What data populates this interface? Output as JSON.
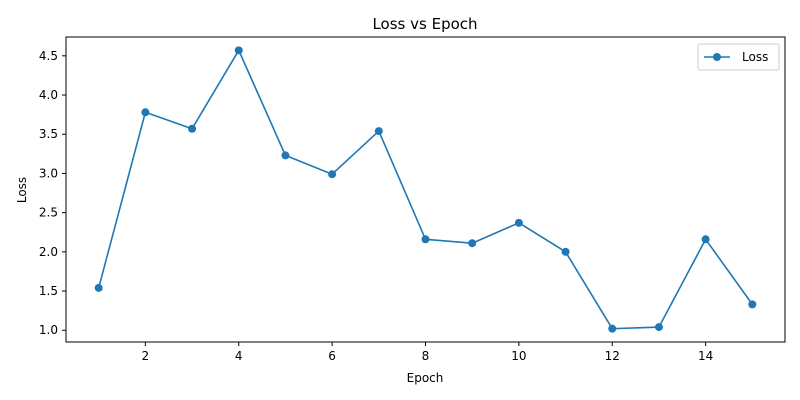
{
  "chart_data": {
    "type": "line",
    "title": "Loss vs Epoch",
    "xlabel": "Epoch",
    "ylabel": "Loss",
    "x": [
      1,
      2,
      3,
      4,
      5,
      6,
      7,
      8,
      9,
      10,
      11,
      12,
      13,
      14,
      15
    ],
    "series": [
      {
        "name": "Loss",
        "values": [
          1.54,
          3.78,
          3.57,
          4.57,
          3.23,
          2.99,
          3.54,
          2.16,
          2.11,
          2.37,
          2.0,
          1.02,
          1.04,
          2.16,
          1.33
        ],
        "color": "#1f77b4",
        "marker": "circle"
      }
    ],
    "xticks": [
      2,
      4,
      6,
      8,
      10,
      12,
      14
    ],
    "yticks": [
      1.0,
      1.5,
      2.0,
      2.5,
      3.0,
      3.5,
      4.0,
      4.5
    ],
    "xlim": [
      0.3,
      15.7
    ],
    "ylim": [
      0.85,
      4.74
    ],
    "grid": false,
    "legend_position": "upper-right"
  }
}
